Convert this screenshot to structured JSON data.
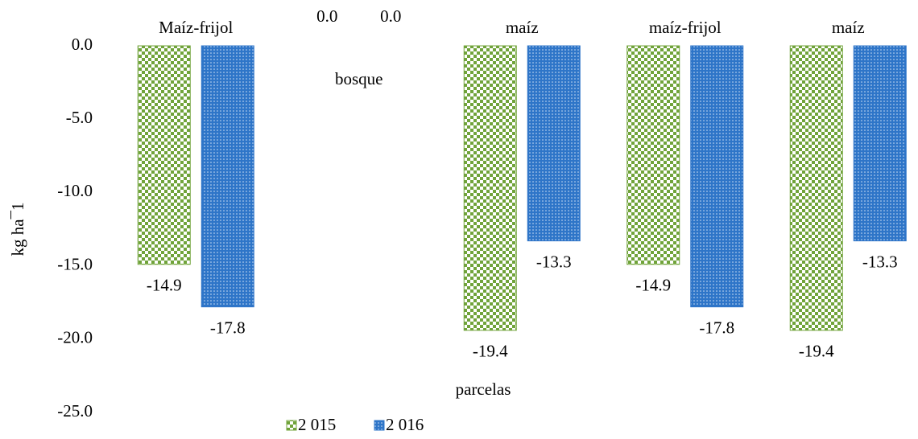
{
  "chart_data": {
    "type": "bar",
    "categories": [
      "Maíz-frijol",
      "bosque",
      "maíz",
      "maíz-frijol",
      "maíz"
    ],
    "series": [
      {
        "name": "2 015",
        "color": "#70a33a",
        "pattern": "checker",
        "values": [
          -14.9,
          0.0,
          -19.4,
          -14.9,
          -19.4
        ],
        "value_labels": [
          "-14.9",
          "0.0",
          "-19.4",
          "-14.9",
          "-19.4"
        ]
      },
      {
        "name": "2 016",
        "color": "#2e75c8",
        "pattern": "dots",
        "values": [
          -17.8,
          0.0,
          -13.3,
          -17.8,
          -13.3
        ],
        "value_labels": [
          "-17.8",
          "0.0",
          "-13.3",
          "-17.8",
          "-13.3"
        ]
      }
    ],
    "ylim": [
      -25,
      0
    ],
    "yticks": [
      {
        "value": 0,
        "label": "0.0"
      },
      {
        "value": -5,
        "label": "-5.0"
      },
      {
        "value": -10,
        "label": "-10.0"
      },
      {
        "value": -15,
        "label": "-15.0"
      },
      {
        "value": -20,
        "label": "-20.0"
      },
      {
        "value": -25,
        "label": "-25.0"
      }
    ],
    "xlabel": "parcelas",
    "ylabel": "kg ha¯1",
    "legend": "bottom",
    "grid": false
  }
}
